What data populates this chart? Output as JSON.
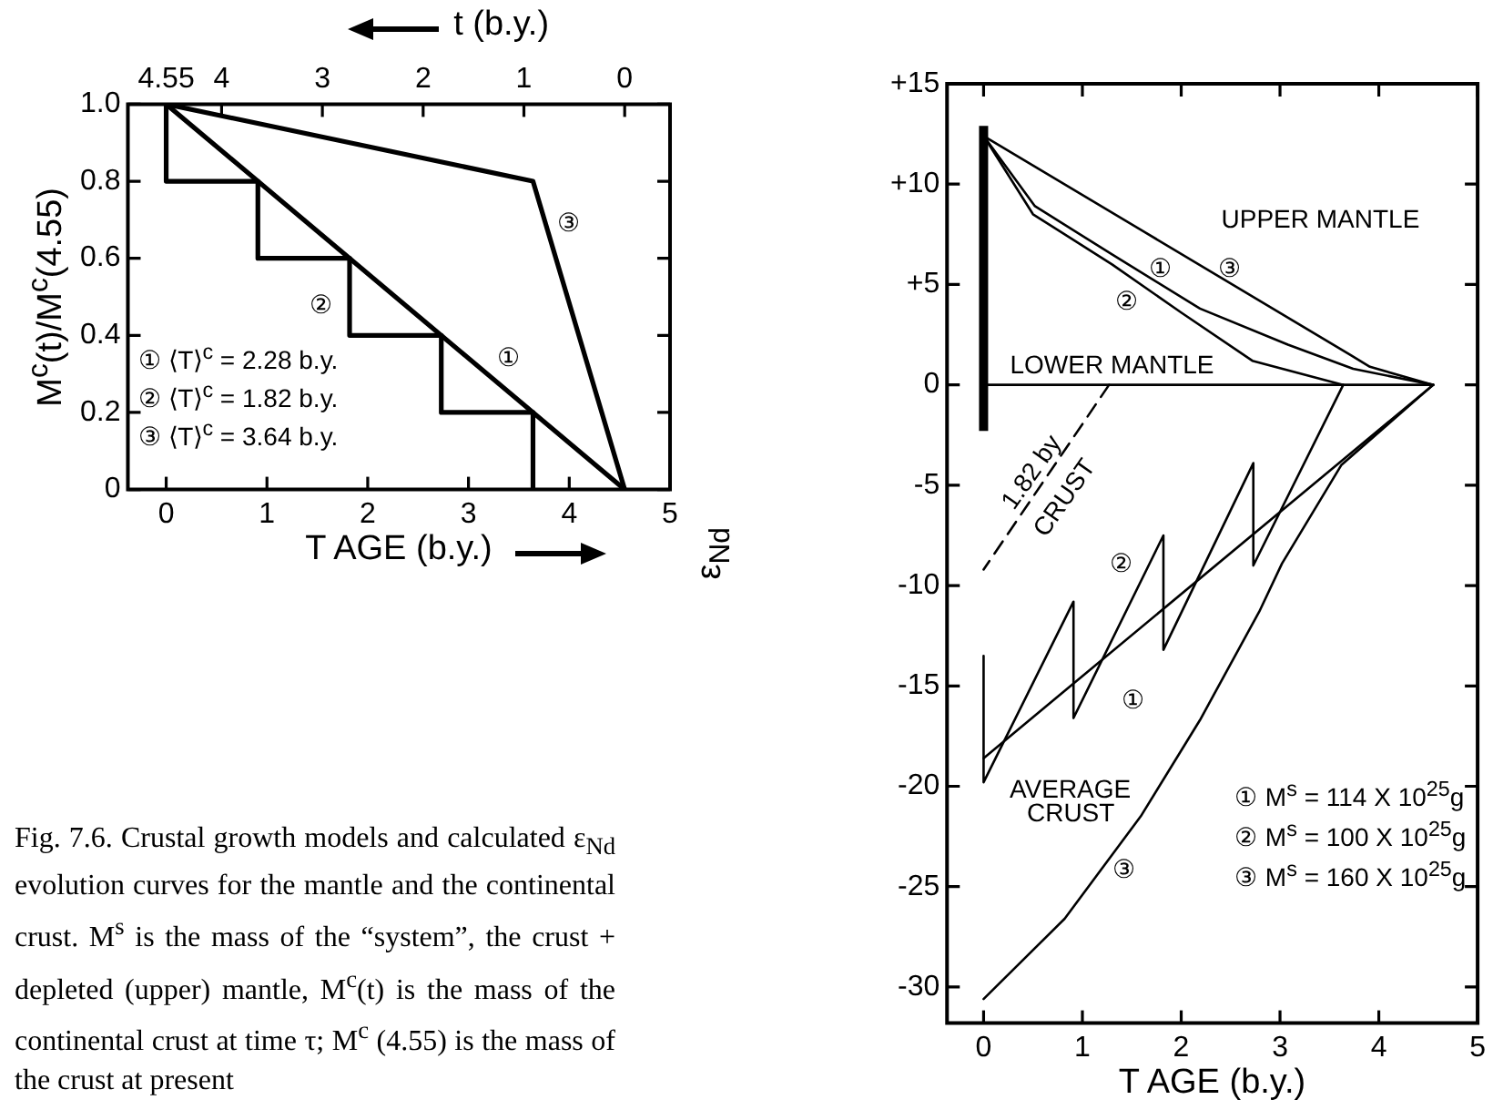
{
  "chart_data": [
    {
      "type": "line",
      "title": "Fig. 7.6. Crustal growth models and calculated ε$_{Nd}$ evolution curves for the mantle and the continental crust. M$^{s}$ is the mass of the “system”, the crust + depleted (upper) mantle, M$^{c}$(t) is the mass of the continental crust at time τ; M$^{c}$ (4.55) is the mass of the crust at present",
      "xlabel": "T AGE (b.y.)",
      "ylabel": "M$^{c}$(t)/M$^{c}$(4.55)",
      "x2label": "t (b.y.)",
      "xlim": [
        -0.38,
        5
      ],
      "xticks": [
        0,
        1,
        2,
        3,
        4,
        5
      ],
      "x2lim": [
        4.93,
        -0.45
      ],
      "x2ticks": [
        4.55,
        4,
        3,
        2,
        1,
        0
      ],
      "ylim": [
        0,
        1
      ],
      "yticks": [
        0,
        0.2,
        0.4,
        0.6,
        0.8,
        {
          "value": 1,
          "label": "1.0"
        }
      ],
      "grid": false,
      "series": [
        {
          "color": "#000000",
          "x": [
            0,
            4.55
          ],
          "values": [
            1,
            0
          ]
        },
        {
          "color": "#000000",
          "x": [
            0,
            0,
            0.91,
            0.91,
            1.82,
            1.82,
            2.73,
            2.73,
            3.64,
            3.64
          ],
          "values": [
            1,
            0.8,
            0.8,
            0.6,
            0.6,
            0.4,
            0.4,
            0.2,
            0.2,
            0
          ]
        },
        {
          "color": "#000000",
          "x": [
            0,
            3.64,
            4.55
          ],
          "values": [
            1,
            0.8,
            0
          ]
        }
      ],
      "annotations": [
        "① ⟨T⟩$^{c}$ = 2.28 b.y.",
        "② ⟨T⟩$^{c}$ = 1.82 b.y.",
        "③ ⟨T⟩$^{c}$ = 3.64 b.y.",
        "①",
        "②",
        "③"
      ]
    },
    {
      "type": "line",
      "xlabel": "T AGE (b.y.)",
      "ylabel": "ε$_{Nd}$",
      "xlim": [
        -0.37,
        5
      ],
      "xticks": [
        0,
        1,
        2,
        3,
        4,
        5
      ],
      "ylim": [
        -31.8,
        15
      ],
      "yticks": [
        {
          "value": 15,
          "label": "+15"
        },
        {
          "value": 10,
          "label": "+10"
        },
        {
          "value": 5,
          "label": "+5"
        },
        0,
        -5,
        -10,
        -15,
        -20,
        -25,
        -30
      ],
      "grid": false,
      "series": [
        {
          "color": "#000000",
          "x": [
            0,
            0
          ],
          "values": [
            -2.3,
            12.9
          ]
        },
        {
          "color": "#000000",
          "x": [
            4.55,
            3.91,
            3.71,
            0
          ],
          "values": [
            0,
            0.9,
            1.5,
            12.4
          ]
        },
        {
          "color": "#000000",
          "x": [
            4.55,
            3.74,
            3.08,
            2.19,
            1.3,
            0.52,
            0
          ],
          "values": [
            0,
            0.8,
            2,
            3.8,
            6.5,
            8.9,
            12.4
          ]
        },
        {
          "color": "#000000",
          "x": [
            3.64,
            2.72,
            2,
            1.3,
            0.5,
            0
          ],
          "values": [
            0,
            1.2,
            3.6,
            6,
            8.5,
            12.4
          ]
        },
        {
          "color": "#000000",
          "x": [
            4.55,
            0
          ],
          "values": [
            0,
            0
          ]
        },
        {
          "color": "#000000",
          "x": [
            1.27,
            0
          ],
          "values": [
            0,
            -9.2
          ],
          "line_style": "dashed"
        },
        {
          "color": "#000000",
          "x": [
            4.55,
            3.62,
            3.02,
            2.79,
            2.19,
            1.59,
            0.82,
            0
          ],
          "values": [
            0,
            -4,
            -8.9,
            -11.3,
            -16.7,
            -21.5,
            -26.6,
            -30.6
          ]
        },
        {
          "color": "#000000",
          "x": [
            4.55,
            0
          ],
          "values": [
            0,
            -18.6
          ]
        },
        {
          "color": "#000000",
          "x": [
            3.64,
            2.73,
            2.73,
            1.82,
            1.82,
            0.91,
            0.91,
            0,
            0
          ],
          "values": [
            0,
            -9,
            -3.9,
            -13.2,
            -7.5,
            -16.6,
            -10.8,
            -19.8,
            -13.5
          ]
        }
      ],
      "annotations": [
        "① M$^{s}$ = 114 X 10$^{25}$g",
        "② M$^{s}$ = 100 X 10$^{25}$g",
        "③ M$^{s}$ = 160 X 10$^{25}$g",
        "UPPER MANTLE",
        "LOWER MANTLE",
        "AVERAGE",
        "CRUST",
        "1.82 by",
        "CRUST",
        "①",
        "③",
        "②",
        "②",
        "①",
        "③"
      ]
    }
  ]
}
